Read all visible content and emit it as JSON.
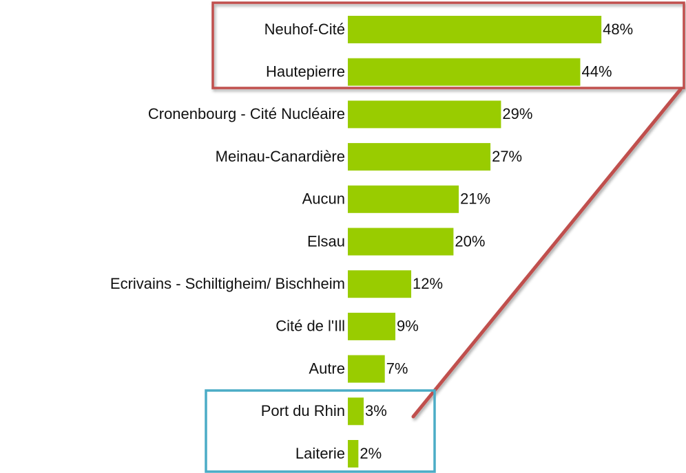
{
  "chart_data": {
    "type": "bar",
    "orientation": "horizontal",
    "categories": [
      "Neuhof-Cité",
      "Hautepierre",
      "Cronenbourg - Cité Nucléaire",
      "Meinau-Canardière",
      "Aucun",
      "Elsau",
      "Ecrivains - Schiltigheim/ Bischheim",
      "Cité de l'Ill",
      "Autre",
      "Port du Rhin",
      "Laiterie"
    ],
    "values": [
      48,
      44,
      29,
      27,
      21,
      20,
      12,
      9,
      7,
      3,
      2
    ],
    "value_labels": [
      "48%",
      "44%",
      "29%",
      "27%",
      "21%",
      "20%",
      "12%",
      "9%",
      "7%",
      "3%",
      "2%"
    ],
    "color": "#99cc00"
  }
}
